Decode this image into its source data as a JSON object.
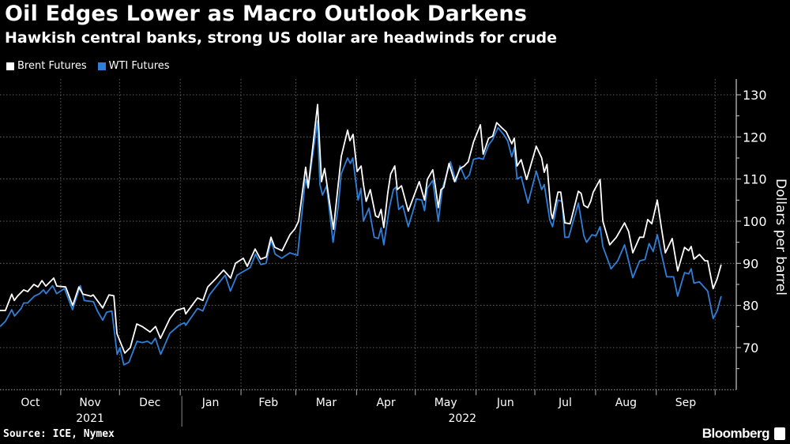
{
  "header": {
    "title": "Oil Edges Lower as Macro Outlook Darkens",
    "subtitle": "Hawkish central banks, strong US dollar are headwinds for crude"
  },
  "footer": {
    "source": "Source: ICE, Nymex",
    "brand": "Bloomberg"
  },
  "chart_data": {
    "type": "line",
    "title": "Oil Edges Lower as Macro Outlook Darkens",
    "subtitle": "Hawkish central banks, strong US dollar are headwinds for crude",
    "xlabel": "",
    "ylabel": "Dollars per barrel",
    "x_units": "days since Oct 1, 2021",
    "ylim": [
      60,
      130
    ],
    "y_ticks": [
      70,
      80,
      90,
      100,
      110,
      120,
      130
    ],
    "y_ticks_labels": [
      "70",
      "80",
      "90",
      "100",
      "110",
      "120",
      "130"
    ],
    "month_labels": [
      "Oct",
      "Nov",
      "Dec",
      "Jan",
      "Feb",
      "Mar",
      "Apr",
      "May",
      "Jun",
      "Jul",
      "Aug",
      "Sep"
    ],
    "month_start_days": [
      0,
      31,
      61,
      92,
      123,
      151,
      182,
      212,
      243,
      273,
      304,
      335,
      365
    ],
    "year_labels": [
      "2021",
      "2022"
    ],
    "grid": true,
    "legend_position": "top-left",
    "series": [
      {
        "name": "Brent Futures",
        "color": "#ffffff",
        "x": [
          0,
          2.8,
          6,
          7.3,
          8.9,
          12.1,
          14.1,
          17.3,
          19.4,
          21.4,
          23.4,
          27.4,
          29,
          33.5,
          37.1,
          40.3,
          42.3,
          46.4,
          47.6,
          50.4,
          52.4,
          55.6,
          58.1,
          59.7,
          63.7,
          66.5,
          69.8,
          72.6,
          76.6,
          79.4,
          81.9,
          86.7,
          89.9,
          94,
          94.8,
          100.8,
          103.6,
          106,
          110,
          114.1,
          117.7,
          120.2,
          124.2,
          126.2,
          130.2,
          133,
          135.9,
          138.3,
          140.3,
          144,
          148,
          150.4,
          152.4,
          156,
          157.3,
          162.1,
          164.1,
          165.7,
          170.2,
          172.2,
          174.2,
          177.4,
          178.6,
          180.2,
          182.3,
          184.3,
          185.5,
          186.9,
          189,
          191.7,
          193.1,
          194.5,
          195.9,
          198,
          199.4,
          201.5,
          202.8,
          204.9,
          208.4,
          210.5,
          214,
          216.7,
          218.1,
          220.9,
          222.3,
          223.7,
          225.1,
          226.5,
          229.2,
          232,
          234.8,
          236.9,
          239,
          241.7,
          245.2,
          246.6,
          249.4,
          251.5,
          253.5,
          256.3,
          258.4,
          261.2,
          262.5,
          263.9,
          266,
          268.8,
          273.7,
          276.5,
          277.8,
          279.2,
          281.3,
          282,
          284.8,
          286.2,
          288.3,
          291,
          295.2,
          296.6,
          298,
          300,
          301.5,
          302.8,
          306.3,
          307.7,
          311.2,
          314.6,
          318.8,
          320.9,
          323,
          326.5,
          328.5,
          330.6,
          332.7,
          335.5,
          337.5,
          339.6,
          343.1,
          345.9,
          349.4,
          351.5,
          352.8,
          354.2,
          357,
          359.8,
          361.2,
          364,
          366,
          368.1
        ],
        "values": [
          78.8,
          78.8,
          82.7,
          81.2,
          82.2,
          83.7,
          83.3,
          85,
          84.4,
          85.9,
          84.6,
          86.5,
          84.6,
          84.4,
          80,
          84.4,
          82.7,
          82.2,
          82.5,
          80.7,
          79.4,
          82.5,
          82.3,
          73.3,
          68.7,
          70,
          75.6,
          75,
          73.7,
          75,
          72.2,
          76.9,
          78.8,
          79.4,
          78,
          81.8,
          81.2,
          84.4,
          86.3,
          88.4,
          86.5,
          90,
          91.2,
          89.3,
          93.4,
          91,
          91.5,
          96.2,
          93.8,
          93,
          96.8,
          98.1,
          100,
          112.8,
          108,
          127.7,
          109.4,
          112.5,
          98.1,
          106.9,
          115.4,
          121.6,
          119.1,
          120.6,
          111.8,
          113.1,
          108.8,
          104.7,
          107.5,
          101.3,
          100.9,
          102.8,
          98.5,
          106.9,
          111.2,
          113.1,
          107.5,
          108.4,
          102.4,
          105,
          109.4,
          105,
          109.9,
          112.2,
          108,
          103.2,
          107.5,
          108,
          113.7,
          109.4,
          112.5,
          113.1,
          114.1,
          118.8,
          122.9,
          115.9,
          119.7,
          120.2,
          123.4,
          122.1,
          121.2,
          118.4,
          119.7,
          113.1,
          114.6,
          109.9,
          117.8,
          115,
          111.6,
          113.5,
          101.9,
          100.6,
          106.9,
          106.9,
          99.6,
          99.4,
          107.1,
          106.6,
          103.8,
          103.2,
          104.7,
          106.9,
          109.9,
          100,
          94.4,
          96.2,
          99.6,
          97.5,
          92.5,
          96.2,
          96.2,
          100.4,
          99.4,
          105,
          98.7,
          92.5,
          95.9,
          88.2,
          93.8,
          93,
          94,
          91,
          92.1,
          90.6,
          90.6,
          84,
          86.3,
          89.7
        ]
      },
      {
        "name": "WTI Futures",
        "color": "#2f7fd8",
        "x": [
          0,
          2.7,
          6,
          7.4,
          10.8,
          12.1,
          14.1,
          17.5,
          20.2,
          22.2,
          23.5,
          26.9,
          28.9,
          32.9,
          37,
          41,
          43,
          47.7,
          49.7,
          52.4,
          54.4,
          57.1,
          59.8,
          61.2,
          63.2,
          65.8,
          69.9,
          72.6,
          75.3,
          77.3,
          79.3,
          82,
          86.7,
          91.4,
          94.1,
          94.8,
          100.8,
          103.5,
          106.9,
          111.6,
          114.9,
          117.6,
          121,
          124.3,
          127.7,
          130.4,
          133.1,
          135.8,
          138.4,
          140.4,
          143.8,
          147.9,
          149.9,
          151.9,
          155.9,
          157.3,
          162,
          163.3,
          164.6,
          166.7,
          170,
          172.7,
          174.1,
          177.4,
          178.8,
          180.1,
          182.8,
          184.2,
          185.5,
          188.3,
          191,
          193.1,
          194.5,
          195.9,
          198.7,
          200.8,
          202.1,
          203.5,
          205.6,
          208.4,
          210.5,
          212.6,
          215.3,
          216.7,
          218.1,
          220.9,
          223.7,
          225.8,
          229.9,
          232.7,
          234.8,
          237.6,
          239.6,
          241.7,
          244.5,
          246.6,
          249.4,
          251.5,
          254.2,
          257,
          259.1,
          261.2,
          262.5,
          263.9,
          266,
          269.5,
          273.7,
          276.5,
          277.8,
          280.6,
          282,
          284.8,
          286.9,
          288.3,
          290.3,
          295.2,
          298,
          299.4,
          302.1,
          304.2,
          306.3,
          307.7,
          311.9,
          315.3,
          318.8,
          323,
          326.5,
          329.2,
          331.3,
          333.4,
          335.5,
          337.5,
          340.3,
          343.8,
          345.9,
          349.4,
          351.5,
          352.8,
          354.2,
          357,
          361.2,
          364,
          366,
          368.1
        ],
        "values": [
          75,
          76.2,
          79,
          77.5,
          79.3,
          80.6,
          80.6,
          82.2,
          82.8,
          83.7,
          82.8,
          84.7,
          82.8,
          84,
          79,
          84.7,
          81.2,
          80.9,
          78.7,
          76.5,
          78.4,
          78.7,
          68.4,
          70,
          65.9,
          66.5,
          71.5,
          71.2,
          71.5,
          70.9,
          72.2,
          68.4,
          73.4,
          75.3,
          75.9,
          75.3,
          79.3,
          78.7,
          82.5,
          85.3,
          87.2,
          83.4,
          87.2,
          88.1,
          89,
          92.2,
          89.7,
          90,
          95.6,
          92.2,
          91.2,
          92.5,
          92.2,
          91.9,
          110,
          107.8,
          123.8,
          108.7,
          106.2,
          108.4,
          95,
          103.7,
          111.2,
          115,
          113.7,
          115,
          105,
          107.8,
          100,
          103.1,
          96.2,
          95.9,
          98.4,
          94.4,
          103.1,
          107.5,
          108.1,
          102.8,
          103.7,
          98.7,
          101.9,
          105.3,
          105,
          102.5,
          107.8,
          109.7,
          100,
          107.8,
          114.1,
          109.4,
          113.1,
          110,
          111,
          114.7,
          115,
          114.7,
          118.1,
          119.4,
          122.2,
          120.6,
          119.1,
          115.3,
          117.5,
          110,
          110.6,
          104.3,
          111.9,
          107.5,
          108.7,
          100.3,
          98.7,
          105,
          104.7,
          96.2,
          96.2,
          104.3,
          96.6,
          95,
          96.8,
          96.5,
          98.7,
          94,
          88.7,
          90.6,
          94.4,
          86.6,
          90.6,
          90.9,
          94.7,
          92.8,
          96.8,
          92.5,
          86.8,
          86.8,
          82.2,
          87.8,
          87.5,
          88.7,
          85.3,
          85.6,
          83.4,
          76.9,
          78.7,
          82.2
        ]
      }
    ]
  }
}
